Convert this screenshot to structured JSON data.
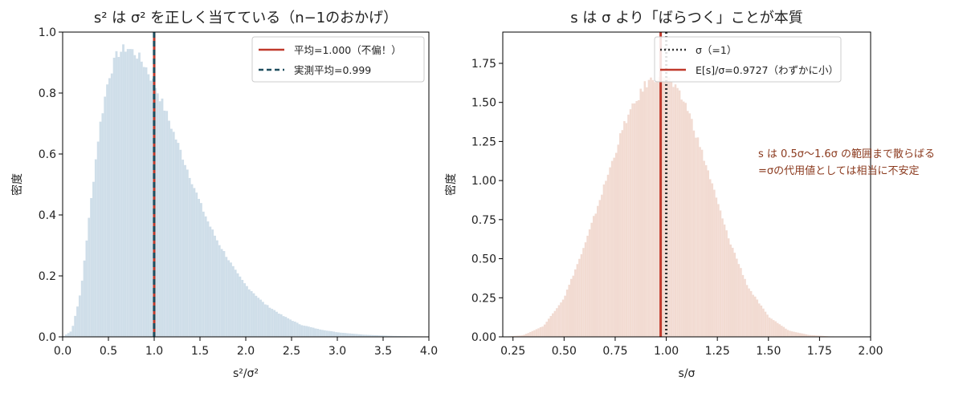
{
  "chart_data": [
    {
      "type": "histogram",
      "title": "s² は σ² を正しく当てている（n−1のおかげ）",
      "xlabel": "s²/σ²",
      "ylabel": "密度",
      "xlim": [
        0,
        4
      ],
      "ylim": [
        0,
        1.0
      ],
      "xticks": [
        "0.0",
        "0.5",
        "1.0",
        "1.5",
        "2.0",
        "2.5",
        "3.0",
        "3.5",
        "4.0"
      ],
      "yticks": [
        "0.0",
        "0.2",
        "0.4",
        "0.6",
        "0.8",
        "1.0"
      ],
      "bar_color": "#cfdee9",
      "bin_width": 0.025,
      "density_curve": [
        [
          0.0,
          0.0
        ],
        [
          0.1,
          0.02
        ],
        [
          0.2,
          0.15
        ],
        [
          0.3,
          0.42
        ],
        [
          0.4,
          0.68
        ],
        [
          0.5,
          0.85
        ],
        [
          0.6,
          0.93
        ],
        [
          0.7,
          0.95
        ],
        [
          0.8,
          0.93
        ],
        [
          0.9,
          0.89
        ],
        [
          1.0,
          0.83
        ],
        [
          1.1,
          0.76
        ],
        [
          1.2,
          0.68
        ],
        [
          1.3,
          0.6
        ],
        [
          1.4,
          0.52
        ],
        [
          1.5,
          0.44
        ],
        [
          1.6,
          0.37
        ],
        [
          1.7,
          0.31
        ],
        [
          1.8,
          0.26
        ],
        [
          1.9,
          0.21
        ],
        [
          2.0,
          0.17
        ],
        [
          2.2,
          0.11
        ],
        [
          2.4,
          0.07
        ],
        [
          2.6,
          0.04
        ],
        [
          2.8,
          0.025
        ],
        [
          3.0,
          0.015
        ],
        [
          3.3,
          0.007
        ],
        [
          3.6,
          0.003
        ],
        [
          4.0,
          0.001
        ]
      ],
      "vlines": [
        {
          "x": 1.0,
          "label": "平均=1.000（不偏！）",
          "color": "#c0392b",
          "style": "solid"
        },
        {
          "x": 0.999,
          "label": "実測平均=0.999",
          "color": "#1f4e5f",
          "style": "dashed"
        }
      ],
      "legend_position": "top-right",
      "grid": false
    },
    {
      "type": "histogram",
      "title": "s は σ より「ばらつく」ことが本質",
      "xlabel": "s/σ",
      "ylabel": "密度",
      "xlim": [
        0.2,
        2.0
      ],
      "ylim": [
        0,
        1.95
      ],
      "xticks": [
        "0.25",
        "0.50",
        "0.75",
        "1.00",
        "1.25",
        "1.50",
        "1.75",
        "2.00"
      ],
      "yticks": [
        "0.00",
        "0.25",
        "0.50",
        "0.75",
        "1.00",
        "1.25",
        "1.50",
        "1.75"
      ],
      "bar_color": "#f2dbd2",
      "bin_width": 0.01,
      "density_curve": [
        [
          0.2,
          0.0
        ],
        [
          0.3,
          0.01
        ],
        [
          0.4,
          0.07
        ],
        [
          0.5,
          0.25
        ],
        [
          0.6,
          0.58
        ],
        [
          0.7,
          0.98
        ],
        [
          0.8,
          1.38
        ],
        [
          0.9,
          1.62
        ],
        [
          0.97,
          1.68
        ],
        [
          1.0,
          1.67
        ],
        [
          1.1,
          1.48
        ],
        [
          1.2,
          1.08
        ],
        [
          1.3,
          0.65
        ],
        [
          1.4,
          0.32
        ],
        [
          1.5,
          0.13
        ],
        [
          1.6,
          0.04
        ],
        [
          1.7,
          0.012
        ],
        [
          1.8,
          0.003
        ],
        [
          2.0,
          0.0
        ]
      ],
      "vlines": [
        {
          "x": 1.0,
          "label": "σ（=1）",
          "color": "#333333",
          "style": "dotted"
        },
        {
          "x": 0.9727,
          "label": "E[s]/σ=0.9727（わずかに小）",
          "color": "#c0392b",
          "style": "solid"
        }
      ],
      "legend_position": "top-right",
      "annotations": [
        "s は 0.5σ〜1.6σ の範囲まで散らばる",
        "=σの代用値としては相当に不安定"
      ],
      "annotation_color": "#8b3a1e",
      "grid": false
    }
  ]
}
